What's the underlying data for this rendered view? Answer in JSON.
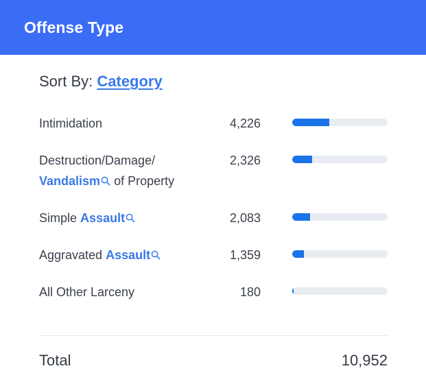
{
  "header": {
    "title": "Offense Type"
  },
  "sort": {
    "prefix": "Sort By:",
    "value": "Category"
  },
  "rows": [
    {
      "parts": [
        "Intimidation"
      ],
      "value": "4,226",
      "fraction": 0.386
    },
    {
      "parts": [
        "Destruction/Damage/",
        "Vandalism",
        "of Property"
      ],
      "value": "2,326",
      "fraction": 0.212
    },
    {
      "parts": [
        "Simple",
        "Assault"
      ],
      "value": "2,083",
      "fraction": 0.19
    },
    {
      "parts": [
        "Aggravated",
        "Assault"
      ],
      "value": "1,359",
      "fraction": 0.124
    },
    {
      "parts": [
        "All Other Larceny"
      ],
      "value": "180",
      "fraction": 0.016
    }
  ],
  "total": {
    "label": "Total",
    "value": "10,952"
  },
  "colors": {
    "header": "#3b6cf6",
    "link": "#3a79e8",
    "bar": "#1a73e8",
    "track": "#e8ecf1"
  },
  "icons": {
    "term_lookup": "search-icon"
  }
}
